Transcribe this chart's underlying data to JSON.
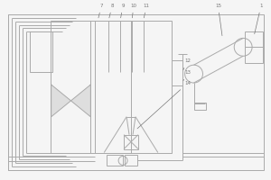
{
  "bg_color": "#f5f5f5",
  "line_color": "#aaaaaa",
  "lw": 0.7,
  "label_color": "#777777",
  "label_fs": 4.0,
  "fig_w": 3.0,
  "fig_h": 2.0,
  "dpi": 100
}
